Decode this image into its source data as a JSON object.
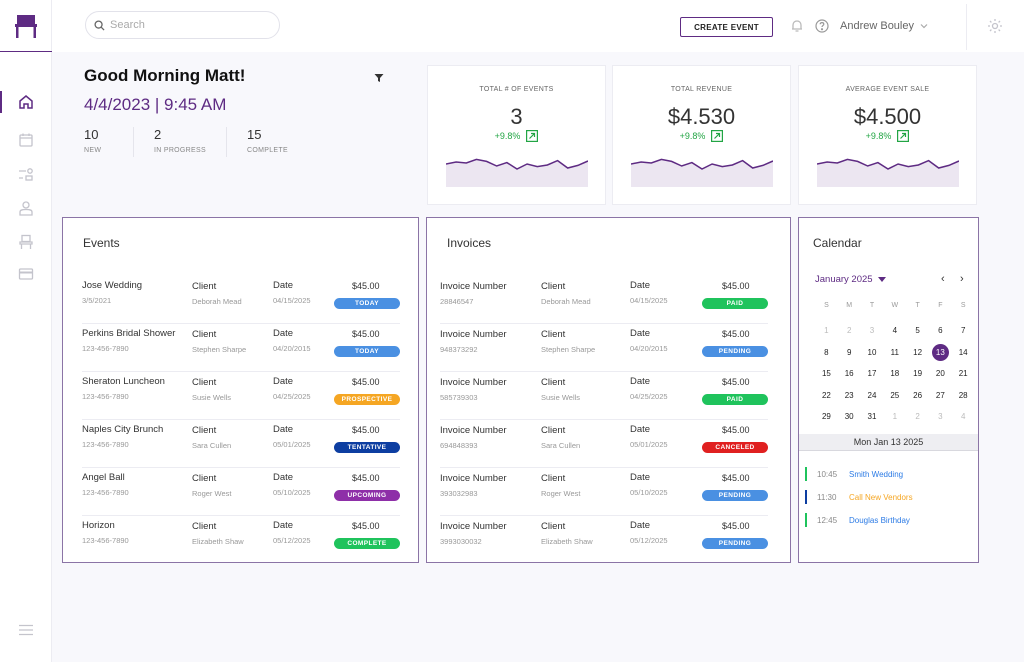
{
  "header": {
    "search_placeholder": "Search",
    "create_event_label": "CREATE EVENT",
    "user_name": "Andrew Bouley"
  },
  "sidebar": {
    "items": [
      {
        "icon": "home-icon",
        "active": true
      },
      {
        "icon": "calendar-icon"
      },
      {
        "icon": "tasks-icon"
      },
      {
        "icon": "user-icon"
      },
      {
        "icon": "chair-icon"
      },
      {
        "icon": "card-icon"
      }
    ]
  },
  "greeting": {
    "title": "Good Morning Matt!",
    "datetime": "4/4/2023 | 9:45 AM",
    "stats": [
      {
        "value": "10",
        "label": "NEW"
      },
      {
        "value": "2",
        "label": "IN PROGRESS"
      },
      {
        "value": "15",
        "label": "COMPLETE"
      }
    ]
  },
  "kpis": [
    {
      "title": "TOTAL # OF EVENTS",
      "value": "3",
      "change": "+9.8%"
    },
    {
      "title": "TOTAL REVENUE",
      "value": "$4.530",
      "change": "+9.8%"
    },
    {
      "title": "AVERAGE  EVENT SALE",
      "value": "$4.500",
      "change": "+9.8%"
    }
  ],
  "sparkline_values": [
    0.55,
    0.65,
    0.6,
    0.78,
    0.68,
    0.45,
    0.62,
    0.3,
    0.55,
    0.42,
    0.5,
    0.72,
    0.35,
    0.48,
    0.7
  ],
  "events": {
    "title": "Events",
    "client_label": "Client",
    "date_label": "Date",
    "rows": [
      {
        "name": "Jose Wedding",
        "sub": "3/5/2021",
        "client": "Deborah Mead",
        "date": "04/15/2025",
        "amount": "$45.00",
        "status": "TODAY",
        "status_color": "#4a90e2"
      },
      {
        "name": "Perkins Bridal Shower",
        "sub": "123-456-7890",
        "client": "Stephen Sharpe",
        "date": "04/20/2015",
        "amount": "$45.00",
        "status": "TODAY",
        "status_color": "#4a90e2"
      },
      {
        "name": "Sheraton Luncheon",
        "sub": "123-456-7890",
        "client": "Susie Wells",
        "date": "04/25/2025",
        "amount": "$45.00",
        "status": "PROSPECTIVE",
        "status_color": "#f5a623"
      },
      {
        "name": "Naples City Brunch",
        "sub": "123-456-7890",
        "client": "Sara Cullen",
        "date": "05/01/2025",
        "amount": "$45.00",
        "status": "TENTATIVE",
        "status_color": "#0d3ea1"
      },
      {
        "name": "Angel Ball",
        "sub": "123-456-7890",
        "client": "Roger West",
        "date": "05/10/2025",
        "amount": "$45.00",
        "status": "UPCOMING",
        "status_color": "#8e2fa8"
      },
      {
        "name": "Horizon",
        "sub": "123-456-7890",
        "client": "Elizabeth Shaw",
        "date": "05/12/2025",
        "amount": "$45.00",
        "status": "COMPLETE",
        "status_color": "#1fc35c"
      }
    ]
  },
  "invoices": {
    "title": "Invoices",
    "number_label": "Invoice Number",
    "client_label": "Client",
    "date_label": "Date",
    "rows": [
      {
        "number": "28846547",
        "client": "Deborah Mead",
        "date": "04/15/2025",
        "amount": "$45.00",
        "status": "PAID",
        "status_color": "#1fc35c"
      },
      {
        "number": "948373292",
        "client": "Stephen Sharpe",
        "date": "04/20/2015",
        "amount": "$45.00",
        "status": "PENDING",
        "status_color": "#4a90e2"
      },
      {
        "number": "585739303",
        "client": "Susie Wells",
        "date": "04/25/2025",
        "amount": "$45.00",
        "status": "PAID",
        "status_color": "#1fc35c"
      },
      {
        "number": "694848393",
        "client": "Sara Cullen",
        "date": "05/01/2025",
        "amount": "$45.00",
        "status": "CANCELED",
        "status_color": "#e02020"
      },
      {
        "number": "393032983",
        "client": "Roger West",
        "date": "05/10/2025",
        "amount": "$45.00",
        "status": "PENDING",
        "status_color": "#4a90e2"
      },
      {
        "number": "3993030032",
        "client": "Elizabeth Shaw",
        "date": "05/12/2025",
        "amount": "$45.00",
        "status": "PENDING",
        "status_color": "#4a90e2"
      }
    ]
  },
  "calendar": {
    "title": "Calendar",
    "month": "January 2025",
    "prev": "‹",
    "next": "›",
    "weekdays": [
      "S",
      "M",
      "T",
      "W",
      "T",
      "F",
      "S"
    ],
    "days": [
      {
        "d": "1",
        "m": true
      },
      {
        "d": "2",
        "m": true
      },
      {
        "d": "3",
        "m": true
      },
      {
        "d": "4"
      },
      {
        "d": "5"
      },
      {
        "d": "6"
      },
      {
        "d": "7"
      },
      {
        "d": "8"
      },
      {
        "d": "9"
      },
      {
        "d": "10"
      },
      {
        "d": "11"
      },
      {
        "d": "12"
      },
      {
        "d": "13",
        "sel": true
      },
      {
        "d": "14"
      },
      {
        "d": "15"
      },
      {
        "d": "16"
      },
      {
        "d": "17"
      },
      {
        "d": "18"
      },
      {
        "d": "19"
      },
      {
        "d": "20"
      },
      {
        "d": "21"
      },
      {
        "d": "22"
      },
      {
        "d": "23"
      },
      {
        "d": "24"
      },
      {
        "d": "25"
      },
      {
        "d": "26"
      },
      {
        "d": "27"
      },
      {
        "d": "28"
      },
      {
        "d": "29"
      },
      {
        "d": "30"
      },
      {
        "d": "31"
      },
      {
        "d": "1",
        "m": true
      },
      {
        "d": "2",
        "m": true
      },
      {
        "d": "3",
        "m": true
      },
      {
        "d": "4",
        "m": true
      }
    ],
    "selected_date": "Mon Jan 13 2025",
    "agenda": [
      {
        "time": "10:45",
        "title": "Smith Wedding",
        "color": "#1fc35c",
        "text_color": "#2c7be5"
      },
      {
        "time": "11:30",
        "title": "Call New Vendors",
        "color": "#0d3ea1",
        "text_color": "#f5a623"
      },
      {
        "time": "12:45",
        "title": "Douglas Birthday",
        "color": "#1fc35c",
        "text_color": "#2c7be5"
      }
    ]
  }
}
